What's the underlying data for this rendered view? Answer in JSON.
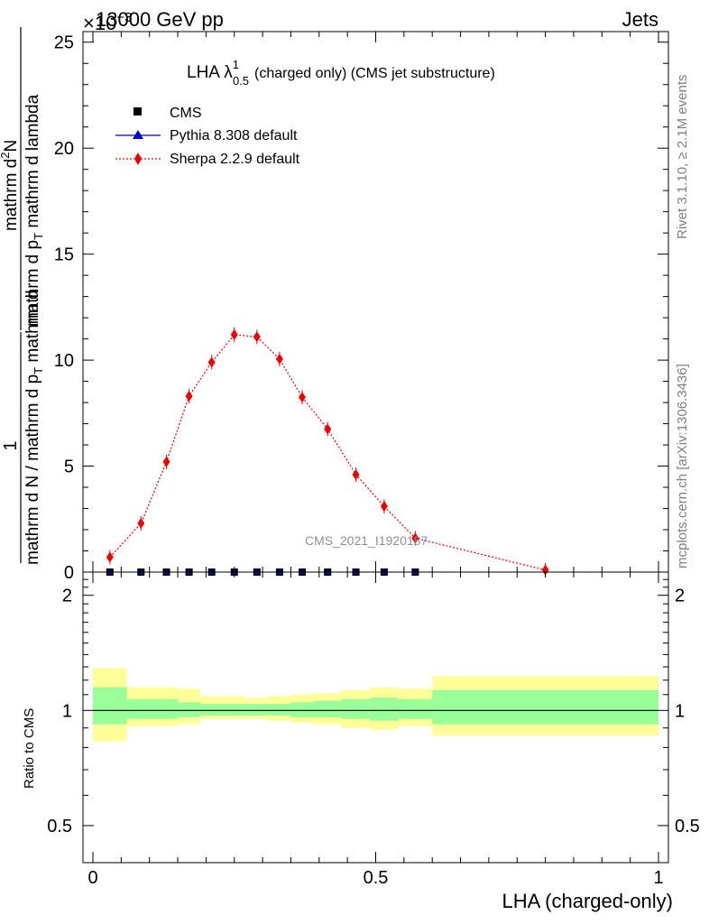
{
  "header": {
    "energy": "13000 GeV pp",
    "category": "Jets",
    "exponent": "×10",
    "exponent_power": "−3"
  },
  "side_labels": {
    "rivet": "Rivet 3.1.10, ≥ 2.1M events",
    "mcplots": "mcplots.cern.ch [arXiv:1306.3436]"
  },
  "plot": {
    "title_main": "LHA λ",
    "title_sup": "1",
    "title_sub": "0.5",
    "title_rest": "(charged only) (CMS jet substructure)",
    "ylabel_num": "1",
    "ylabel_den_a": "mathrm d N / mathrm d p",
    "ylabel_den_sub": "T",
    "ylabel_den_b": " mathrm d",
    "ylabel_den_c": "mathrm d",
    "ylabel_den_c2": "N",
    "ylabel_frac2_num_a": "mathrm d",
    "ylabel_frac2_num_sup": "2",
    "ylabel_frac2_num_b": "N",
    "ylabel_frac2_den_a": "mathrm d p",
    "ylabel_frac2_den_sub": "T",
    "ylabel_frac2_den_b": " mathrm d lambda",
    "watermark": "CMS_2021_I1920187",
    "ratio_ylabel": "Ratio to CMS",
    "xlabel": "LHA (charged-only)"
  },
  "legend": [
    {
      "label": "CMS",
      "color": "#000000",
      "marker": "square"
    },
    {
      "label": "Pythia 8.308 default",
      "color": "#0000cc",
      "marker": "triangle"
    },
    {
      "label": "Sherpa 2.2.9 default",
      "color": "#ee0000",
      "marker": "diamond"
    }
  ],
  "chart_data": [
    {
      "type": "line",
      "title": "LHA λ^1_0.5 (charged only) (CMS jet substructure)",
      "xlabel": "LHA (charged-only)",
      "ylabel": "1/(mathrm d N / mathrm d p_T mathrm d lambda) · mathrm d^2N/(mathrm d p_T mathrm d lambda)",
      "xlim": [
        0,
        1
      ],
      "ylim": [
        0,
        25.5
      ],
      "y_scale_note": "×10^-3",
      "yticks": [
        0,
        5,
        10,
        15,
        20,
        25
      ],
      "series": [
        {
          "name": "CMS",
          "color": "#000000",
          "x": [
            0.03,
            0.085,
            0.13,
            0.17,
            0.21,
            0.25,
            0.29,
            0.33,
            0.37,
            0.415,
            0.465,
            0.515,
            0.57
          ],
          "y": [
            0,
            0,
            0,
            0,
            0,
            0,
            0,
            0,
            0,
            0,
            0,
            0,
            0
          ]
        },
        {
          "name": "Pythia 8.308 default",
          "color": "#0000cc",
          "x": [
            0.03,
            0.085,
            0.13,
            0.17,
            0.21,
            0.25,
            0.29,
            0.33,
            0.37,
            0.415,
            0.465,
            0.515,
            0.57
          ],
          "y": [
            0,
            0,
            0,
            0,
            0,
            0,
            0,
            0,
            0,
            0,
            0,
            0,
            0
          ]
        },
        {
          "name": "Sherpa 2.2.9 default",
          "color": "#ee0000",
          "x": [
            0.03,
            0.085,
            0.13,
            0.17,
            0.21,
            0.25,
            0.29,
            0.33,
            0.37,
            0.415,
            0.465,
            0.515,
            0.57,
            0.8
          ],
          "y": [
            0.7,
            2.3,
            5.2,
            8.3,
            9.9,
            11.2,
            11.1,
            10.05,
            8.25,
            6.75,
            4.6,
            3.1,
            1.6,
            0.1
          ]
        }
      ]
    },
    {
      "type": "area",
      "ylabel": "Ratio to CMS",
      "xlabel": "LHA (charged-only)",
      "xlim": [
        0,
        1
      ],
      "ylim": [
        0.4,
        2.3
      ],
      "yticks": [
        0.5,
        1,
        2
      ],
      "xticks": [
        0,
        0.5,
        1
      ],
      "bins": [
        {
          "x0": 0.0,
          "x1": 0.06,
          "inner": [
            0.92,
            1.15
          ],
          "outer": [
            0.83,
            1.29
          ]
        },
        {
          "x0": 0.06,
          "x1": 0.15,
          "inner": [
            0.95,
            1.07
          ],
          "outer": [
            0.91,
            1.15
          ]
        },
        {
          "x0": 0.15,
          "x1": 0.19,
          "inner": [
            0.96,
            1.05
          ],
          "outer": [
            0.92,
            1.14
          ]
        },
        {
          "x0": 0.19,
          "x1": 0.23,
          "inner": [
            0.97,
            1.04
          ],
          "outer": [
            0.95,
            1.09
          ]
        },
        {
          "x0": 0.23,
          "x1": 0.27,
          "inner": [
            0.97,
            1.04
          ],
          "outer": [
            0.95,
            1.09
          ]
        },
        {
          "x0": 0.27,
          "x1": 0.31,
          "inner": [
            0.97,
            1.04
          ],
          "outer": [
            0.95,
            1.08
          ]
        },
        {
          "x0": 0.31,
          "x1": 0.35,
          "inner": [
            0.97,
            1.04
          ],
          "outer": [
            0.94,
            1.09
          ]
        },
        {
          "x0": 0.35,
          "x1": 0.39,
          "inner": [
            0.96,
            1.05
          ],
          "outer": [
            0.93,
            1.1
          ]
        },
        {
          "x0": 0.39,
          "x1": 0.44,
          "inner": [
            0.96,
            1.06
          ],
          "outer": [
            0.92,
            1.11
          ]
        },
        {
          "x0": 0.44,
          "x1": 0.49,
          "inner": [
            0.95,
            1.07
          ],
          "outer": [
            0.9,
            1.13
          ]
        },
        {
          "x0": 0.49,
          "x1": 0.54,
          "inner": [
            0.94,
            1.08
          ],
          "outer": [
            0.89,
            1.15
          ]
        },
        {
          "x0": 0.54,
          "x1": 0.6,
          "inner": [
            0.95,
            1.07
          ],
          "outer": [
            0.91,
            1.14
          ]
        },
        {
          "x0": 0.6,
          "x1": 1.0,
          "inner": [
            0.92,
            1.13
          ],
          "outer": [
            0.86,
            1.23
          ]
        }
      ],
      "reference_line": 1
    }
  ]
}
